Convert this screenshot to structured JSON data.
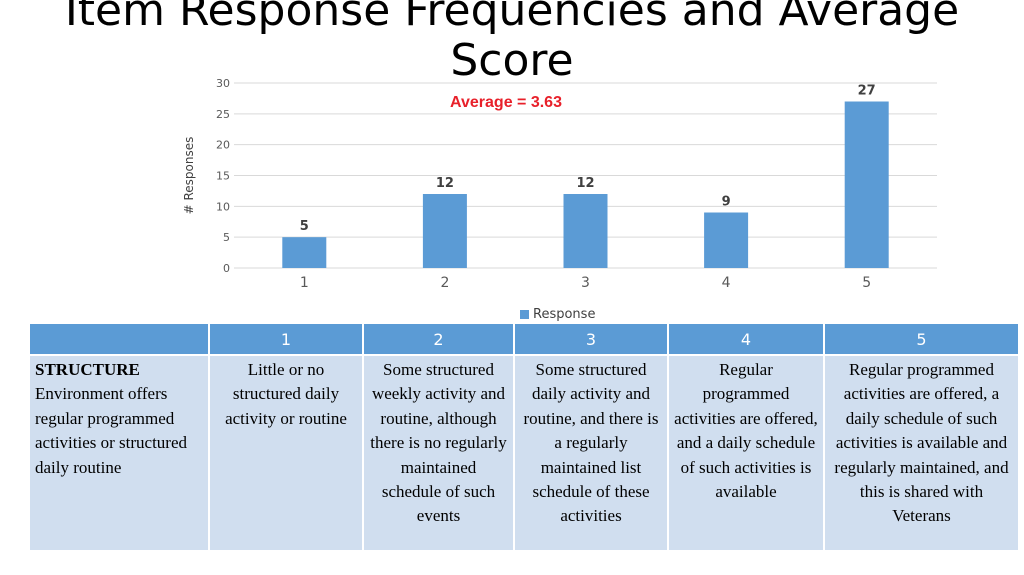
{
  "title": "Item Response Frequencies and Average Score",
  "chart_data": {
    "type": "bar",
    "categories": [
      "1",
      "2",
      "3",
      "4",
      "5"
    ],
    "series": [
      {
        "name": "Response",
        "values": [
          5,
          12,
          12,
          9,
          27
        ]
      }
    ],
    "data_labels": [
      "5",
      "12",
      "12",
      "9",
      "27"
    ],
    "ylabel": "# Responses",
    "xlabel": "",
    "ylim": [
      0,
      30
    ],
    "yticks": [
      0,
      5,
      10,
      15,
      20,
      25,
      30
    ],
    "grid": true,
    "legend": "bottom",
    "annotation": "Average = 3.63",
    "bar_color": "#5b9bd5",
    "annotation_color": "#e8202a"
  },
  "table": {
    "headers": [
      "",
      "1",
      "2",
      "3",
      "4",
      "5"
    ],
    "row": {
      "label_bold": "STRUCTURE",
      "label_text": "Environment offers regular programmed activities or structured daily routine",
      "cells": [
        "Little or no structured daily activity or routine",
        "Some structured weekly activity and routine, although there is no regularly maintained schedule of such events",
        "Some structured daily activity and routine, and there is a regularly maintained list schedule of these activities",
        "Regular programmed activities are offered, and a daily schedule of such activities is available",
        "Regular programmed activities are offered, a daily schedule of such activities is available and regularly maintained, and this is shared with Veterans"
      ]
    }
  }
}
